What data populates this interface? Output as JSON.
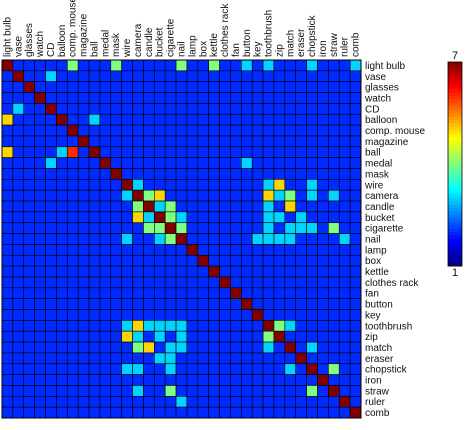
{
  "chart_data": {
    "type": "heatmap",
    "title": "",
    "xlabel": "",
    "ylabel": "",
    "categories": [
      "light bulb",
      "vase",
      "glasses",
      "watch",
      "CD",
      "balloon",
      "comp. mouse",
      "magazine",
      "ball",
      "medal",
      "mask",
      "wire",
      "camera",
      "candle",
      "bucket",
      "cigarette",
      "nail",
      "lamp",
      "box",
      "kettle",
      "clothes rack",
      "fan",
      "button",
      "key",
      "toothbrush",
      "zip",
      "match",
      "eraser",
      "chopstick",
      "iron",
      "straw",
      "ruler",
      "comb"
    ],
    "colorbar": {
      "min": 1,
      "max": 7,
      "tick_labels": [
        "7",
        "1"
      ],
      "colormap": "jet"
    },
    "values": [
      [
        7,
        2,
        2,
        2,
        2,
        2,
        4,
        2,
        2,
        2,
        4,
        2,
        2,
        2,
        2,
        2,
        4,
        2,
        2,
        4,
        2,
        2,
        3,
        2,
        3,
        2,
        2,
        2,
        3,
        2,
        2,
        2,
        3
      ],
      [
        2,
        7,
        2,
        2,
        3,
        2,
        2,
        2,
        2,
        2,
        2,
        2,
        2,
        2,
        2,
        2,
        2,
        2,
        2,
        2,
        2,
        2,
        2,
        2,
        2,
        2,
        2,
        2,
        2,
        2,
        2,
        2,
        2
      ],
      [
        2,
        2,
        7,
        2,
        2,
        2,
        2,
        2,
        2,
        2,
        2,
        2,
        2,
        2,
        2,
        2,
        2,
        2,
        2,
        2,
        2,
        2,
        2,
        2,
        2,
        2,
        2,
        2,
        2,
        2,
        2,
        2,
        2
      ],
      [
        2,
        2,
        2,
        7,
        2,
        2,
        2,
        2,
        2,
        2,
        2,
        2,
        2,
        2,
        2,
        2,
        2,
        2,
        2,
        2,
        2,
        2,
        2,
        2,
        2,
        2,
        2,
        2,
        2,
        2,
        2,
        2,
        2
      ],
      [
        2,
        3,
        2,
        2,
        7,
        2,
        2,
        2,
        2,
        2,
        2,
        2,
        2,
        2,
        2,
        2,
        2,
        2,
        2,
        2,
        2,
        2,
        2,
        2,
        2,
        2,
        2,
        2,
        2,
        2,
        2,
        2,
        2
      ],
      [
        5,
        2,
        2,
        2,
        2,
        7,
        2,
        2,
        3,
        2,
        2,
        2,
        2,
        2,
        2,
        2,
        2,
        2,
        2,
        2,
        2,
        2,
        2,
        2,
        2,
        2,
        2,
        2,
        2,
        2,
        2,
        2,
        2
      ],
      [
        2,
        2,
        2,
        2,
        2,
        2,
        7,
        2,
        2,
        2,
        2,
        2,
        2,
        2,
        2,
        2,
        2,
        2,
        2,
        2,
        2,
        2,
        2,
        2,
        2,
        2,
        2,
        2,
        2,
        2,
        2,
        2,
        2
      ],
      [
        2,
        2,
        2,
        2,
        2,
        2,
        2,
        7,
        2,
        2,
        2,
        2,
        2,
        2,
        2,
        2,
        2,
        2,
        2,
        2,
        2,
        2,
        2,
        2,
        2,
        2,
        2,
        2,
        2,
        2,
        2,
        2,
        2
      ],
      [
        5,
        2,
        2,
        2,
        2,
        3,
        6,
        2,
        7,
        2,
        2,
        2,
        2,
        2,
        2,
        2,
        2,
        2,
        2,
        2,
        2,
        2,
        2,
        2,
        2,
        2,
        2,
        2,
        2,
        2,
        2,
        2,
        2
      ],
      [
        2,
        2,
        2,
        2,
        3,
        2,
        2,
        2,
        2,
        7,
        2,
        2,
        2,
        2,
        2,
        2,
        2,
        2,
        2,
        2,
        2,
        2,
        3,
        2,
        2,
        2,
        2,
        2,
        2,
        2,
        2,
        2,
        2
      ],
      [
        2,
        2,
        2,
        2,
        2,
        2,
        2,
        2,
        2,
        2,
        7,
        2,
        2,
        2,
        2,
        2,
        2,
        2,
        2,
        2,
        2,
        2,
        2,
        2,
        2,
        2,
        2,
        2,
        2,
        2,
        2,
        2,
        2
      ],
      [
        2,
        2,
        2,
        2,
        2,
        2,
        2,
        2,
        2,
        2,
        2,
        7,
        3,
        2,
        2,
        2,
        2,
        2,
        2,
        2,
        2,
        2,
        2,
        2,
        3,
        5,
        2,
        2,
        3,
        2,
        2,
        2,
        2
      ],
      [
        2,
        2,
        2,
        2,
        2,
        2,
        2,
        2,
        2,
        2,
        2,
        3,
        7,
        4,
        5,
        2,
        2,
        2,
        2,
        2,
        2,
        2,
        2,
        2,
        5,
        3,
        4,
        2,
        3,
        2,
        3,
        2,
        2
      ],
      [
        2,
        2,
        2,
        2,
        2,
        2,
        2,
        2,
        2,
        2,
        2,
        2,
        4,
        7,
        3,
        4,
        2,
        2,
        2,
        2,
        2,
        2,
        2,
        2,
        3,
        2,
        5,
        2,
        2,
        2,
        2,
        2,
        2
      ],
      [
        2,
        2,
        2,
        2,
        2,
        2,
        2,
        2,
        2,
        2,
        2,
        2,
        5,
        3,
        7,
        4,
        3,
        2,
        2,
        2,
        2,
        2,
        2,
        2,
        3,
        3,
        2,
        3,
        2,
        2,
        2,
        2,
        2
      ],
      [
        2,
        2,
        2,
        2,
        2,
        2,
        2,
        2,
        2,
        2,
        2,
        2,
        2,
        4,
        4,
        7,
        4,
        2,
        2,
        2,
        2,
        2,
        2,
        2,
        3,
        2,
        3,
        3,
        3,
        2,
        4,
        2,
        2
      ],
      [
        2,
        2,
        2,
        2,
        2,
        2,
        2,
        2,
        2,
        2,
        2,
        3,
        2,
        2,
        3,
        4,
        7,
        2,
        2,
        2,
        2,
        2,
        2,
        3,
        3,
        3,
        3,
        2,
        2,
        2,
        2,
        3,
        2
      ],
      [
        2,
        2,
        2,
        2,
        2,
        2,
        2,
        2,
        2,
        2,
        2,
        2,
        2,
        2,
        2,
        2,
        2,
        7,
        2,
        2,
        2,
        2,
        2,
        2,
        2,
        2,
        2,
        2,
        2,
        2,
        2,
        2,
        2
      ],
      [
        2,
        2,
        2,
        2,
        2,
        2,
        2,
        2,
        2,
        2,
        2,
        2,
        2,
        2,
        2,
        2,
        2,
        2,
        7,
        2,
        2,
        2,
        2,
        2,
        2,
        2,
        2,
        2,
        2,
        2,
        2,
        2,
        2
      ],
      [
        2,
        2,
        2,
        2,
        2,
        2,
        2,
        2,
        2,
        2,
        2,
        2,
        2,
        2,
        2,
        2,
        2,
        2,
        2,
        7,
        2,
        2,
        2,
        2,
        2,
        2,
        2,
        2,
        2,
        2,
        2,
        2,
        2
      ],
      [
        2,
        2,
        2,
        2,
        2,
        2,
        2,
        2,
        2,
        2,
        2,
        2,
        2,
        2,
        2,
        2,
        2,
        2,
        2,
        2,
        7,
        2,
        2,
        2,
        2,
        2,
        2,
        2,
        2,
        2,
        2,
        2,
        2
      ],
      [
        2,
        2,
        2,
        2,
        2,
        2,
        2,
        2,
        2,
        2,
        2,
        2,
        2,
        2,
        2,
        2,
        2,
        2,
        2,
        2,
        2,
        7,
        2,
        2,
        2,
        2,
        2,
        2,
        2,
        2,
        2,
        2,
        2
      ],
      [
        2,
        2,
        2,
        2,
        2,
        2,
        2,
        2,
        2,
        2,
        2,
        2,
        2,
        2,
        2,
        2,
        2,
        2,
        2,
        2,
        2,
        2,
        7,
        2,
        2,
        2,
        2,
        2,
        2,
        2,
        2,
        2,
        2
      ],
      [
        2,
        2,
        2,
        2,
        2,
        2,
        2,
        2,
        2,
        2,
        2,
        2,
        2,
        2,
        2,
        2,
        2,
        2,
        2,
        2,
        2,
        2,
        2,
        7,
        2,
        2,
        2,
        2,
        2,
        2,
        2,
        2,
        2
      ],
      [
        2,
        2,
        2,
        2,
        2,
        2,
        2,
        2,
        2,
        2,
        2,
        3,
        5,
        3,
        3,
        3,
        3,
        2,
        2,
        2,
        2,
        2,
        2,
        2,
        7,
        4,
        3,
        2,
        2,
        2,
        2,
        2,
        2
      ],
      [
        2,
        2,
        2,
        2,
        2,
        2,
        2,
        2,
        2,
        2,
        2,
        5,
        3,
        2,
        3,
        2,
        3,
        2,
        2,
        2,
        2,
        2,
        2,
        2,
        4,
        7,
        2,
        2,
        2,
        2,
        2,
        2,
        2
      ],
      [
        2,
        2,
        2,
        2,
        2,
        2,
        2,
        2,
        2,
        2,
        2,
        2,
        4,
        5,
        2,
        3,
        3,
        2,
        2,
        2,
        2,
        2,
        2,
        2,
        3,
        2,
        7,
        2,
        3,
        2,
        2,
        2,
        2
      ],
      [
        2,
        2,
        2,
        2,
        2,
        2,
        2,
        2,
        2,
        2,
        2,
        2,
        2,
        2,
        3,
        3,
        2,
        2,
        2,
        2,
        2,
        2,
        2,
        2,
        2,
        2,
        2,
        7,
        2,
        2,
        2,
        2,
        2
      ],
      [
        2,
        2,
        2,
        2,
        2,
        2,
        2,
        2,
        2,
        2,
        2,
        3,
        3,
        2,
        2,
        3,
        2,
        2,
        2,
        2,
        2,
        2,
        2,
        2,
        2,
        2,
        3,
        2,
        7,
        2,
        4,
        2,
        2
      ],
      [
        2,
        2,
        2,
        2,
        2,
        2,
        2,
        2,
        2,
        2,
        2,
        2,
        2,
        2,
        2,
        2,
        2,
        2,
        2,
        2,
        2,
        2,
        2,
        2,
        2,
        2,
        2,
        2,
        2,
        7,
        2,
        2,
        2
      ],
      [
        2,
        2,
        2,
        2,
        2,
        2,
        2,
        2,
        2,
        2,
        2,
        2,
        3,
        2,
        2,
        4,
        2,
        2,
        2,
        2,
        2,
        2,
        2,
        2,
        2,
        2,
        2,
        2,
        4,
        2,
        7,
        2,
        2
      ],
      [
        2,
        2,
        2,
        2,
        2,
        2,
        2,
        2,
        2,
        2,
        2,
        2,
        2,
        2,
        2,
        2,
        3,
        2,
        2,
        2,
        2,
        2,
        2,
        2,
        2,
        2,
        2,
        2,
        2,
        2,
        2,
        7,
        2
      ],
      [
        2,
        2,
        2,
        2,
        2,
        2,
        2,
        2,
        2,
        2,
        2,
        2,
        2,
        2,
        2,
        2,
        2,
        2,
        2,
        2,
        2,
        2,
        2,
        2,
        2,
        2,
        2,
        2,
        2,
        2,
        2,
        2,
        7
      ]
    ]
  }
}
